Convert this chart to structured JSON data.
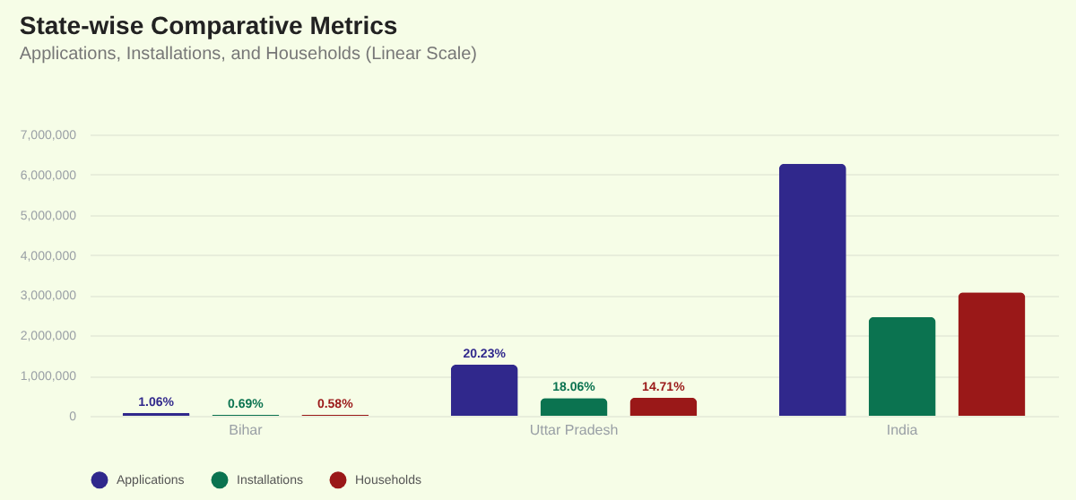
{
  "chart_data": {
    "type": "bar",
    "title": "State-wise Comparative Metrics",
    "subtitle": "Applications, Installations, and Households (Linear Scale)",
    "categories": [
      "Bihar",
      "Uttar Pradesh",
      "India"
    ],
    "series": [
      {
        "name": "Applications",
        "color": "#30288c",
        "values": [
          70000,
          1270000,
          6270000
        ]
      },
      {
        "name": "Installations",
        "color": "#0b7350",
        "values": [
          20000,
          440000,
          2460000
        ]
      },
      {
        "name": "Households",
        "color": "#9a1818",
        "values": [
          20000,
          450000,
          3070000
        ]
      }
    ],
    "annotations": [
      "1.06%",
      "0.69%",
      "0.58%",
      "20.23%",
      "18.06%",
      "14.71%"
    ],
    "ylim": [
      0,
      7000000
    ],
    "yticks": [
      0,
      {
        "value": 1000000,
        "label": "1,000,000"
      },
      {
        "value": 2000000,
        "label": "2,000,000"
      },
      {
        "value": 3000000,
        "label": "3,000,000"
      },
      {
        "value": 4000000,
        "label": "4,000,000"
      },
      {
        "value": 5000000,
        "label": "5,000,000"
      },
      {
        "value": 6000000,
        "label": "6,000,000"
      },
      {
        "value": 7000000,
        "label": "7,000,000"
      }
    ],
    "grid": "y",
    "legend": "bottom"
  }
}
